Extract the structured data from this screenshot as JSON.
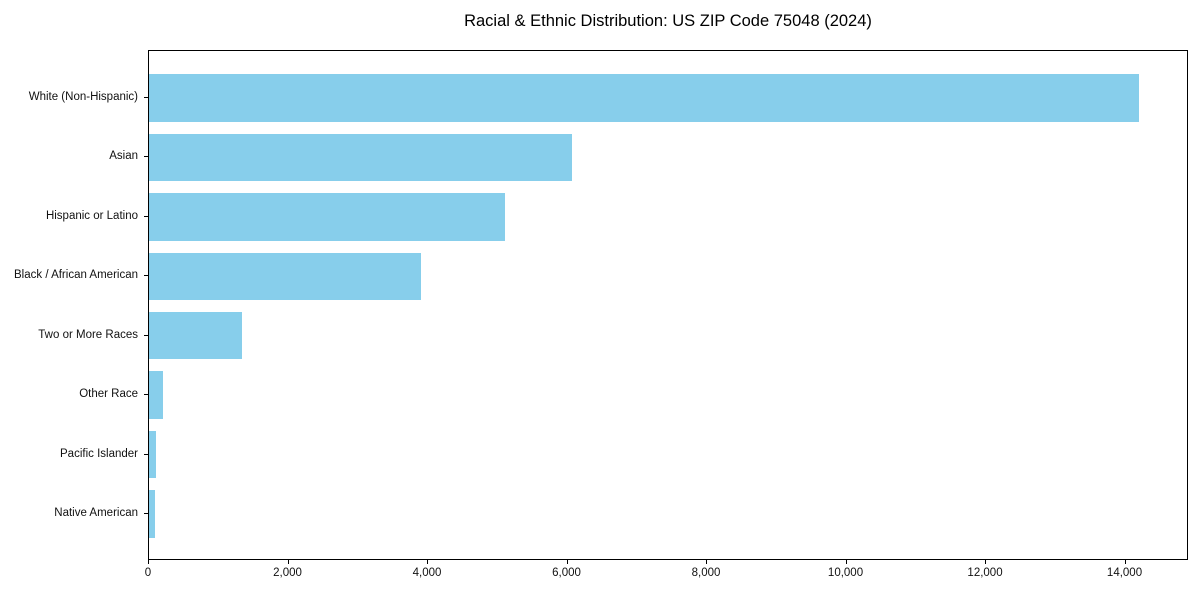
{
  "title": "Racial & Ethnic Distribution: US ZIP Code 75048 (2024)",
  "colors": {
    "bar": "#87CEEB",
    "axis": "#000000",
    "tick_text": "#111111",
    "background": "#FFFFFF"
  },
  "chart_data": {
    "type": "bar",
    "orientation": "horizontal",
    "title": "Racial & Ethnic Distribution: US ZIP Code 75048 (2024)",
    "categories": [
      "White (Non-Hispanic)",
      "Asian",
      "Hispanic or Latino",
      "Black / African American",
      "Two or More Races",
      "Other Race",
      "Pacific Islander",
      "Native American"
    ],
    "values": [
      14200,
      6070,
      5110,
      3900,
      1340,
      200,
      100,
      85
    ],
    "xlabel": "",
    "ylabel": "",
    "xlim": [
      0,
      14910
    ],
    "xticks": [
      0,
      2000,
      4000,
      6000,
      8000,
      10000,
      12000,
      14000
    ],
    "xtick_labels": [
      "0",
      "2,000",
      "4,000",
      "6,000",
      "8,000",
      "10,000",
      "12,000",
      "14,000"
    ],
    "grid": false,
    "legend": null,
    "bar_color": "#87CEEB"
  }
}
